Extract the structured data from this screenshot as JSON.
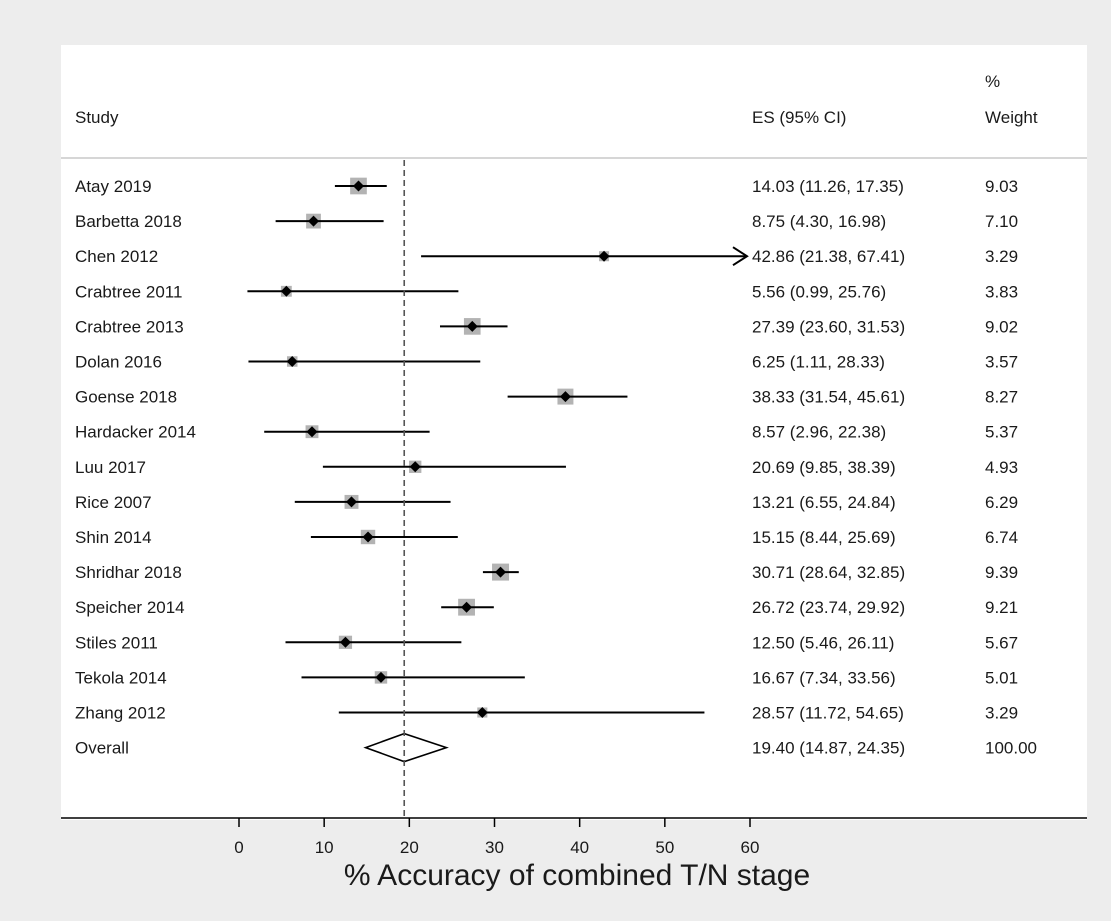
{
  "chart_data": {
    "type": "forest",
    "columns": {
      "study": "Study",
      "es": "ES (95% CI)",
      "weight_line1": "%",
      "weight_line2": "Weight"
    },
    "xlabel": "% Accuracy of combined T/N stage",
    "xlim": [
      0,
      60
    ],
    "xticks": [
      0,
      10,
      20,
      30,
      40,
      50,
      60
    ],
    "reference_line": 19.4,
    "studies": [
      {
        "name": "Atay 2019",
        "es": 14.03,
        "lo": 11.26,
        "hi": 17.35,
        "es_text": "14.03 (11.26, 17.35)",
        "weight": 9.03,
        "weight_text": "9.03"
      },
      {
        "name": "Barbetta 2018",
        "es": 8.75,
        "lo": 4.3,
        "hi": 16.98,
        "es_text": "8.75 (4.30, 16.98)",
        "weight": 7.1,
        "weight_text": "7.10"
      },
      {
        "name": "Chen 2012",
        "es": 42.86,
        "lo": 21.38,
        "hi": 67.41,
        "es_text": "42.86 (21.38, 67.41)",
        "weight": 3.29,
        "weight_text": "3.29"
      },
      {
        "name": "Crabtree 2011",
        "es": 5.56,
        "lo": 0.99,
        "hi": 25.76,
        "es_text": "5.56 (0.99, 25.76)",
        "weight": 3.83,
        "weight_text": "3.83"
      },
      {
        "name": "Crabtree 2013",
        "es": 27.39,
        "lo": 23.6,
        "hi": 31.53,
        "es_text": "27.39 (23.60, 31.53)",
        "weight": 9.02,
        "weight_text": "9.02"
      },
      {
        "name": "Dolan 2016",
        "es": 6.25,
        "lo": 1.11,
        "hi": 28.33,
        "es_text": "6.25 (1.11, 28.33)",
        "weight": 3.57,
        "weight_text": "3.57"
      },
      {
        "name": "Goense 2018",
        "es": 38.33,
        "lo": 31.54,
        "hi": 45.61,
        "es_text": "38.33 (31.54, 45.61)",
        "weight": 8.27,
        "weight_text": "8.27"
      },
      {
        "name": "Hardacker 2014",
        "es": 8.57,
        "lo": 2.96,
        "hi": 22.38,
        "es_text": "8.57 (2.96, 22.38)",
        "weight": 5.37,
        "weight_text": "5.37"
      },
      {
        "name": "Luu 2017",
        "es": 20.69,
        "lo": 9.85,
        "hi": 38.39,
        "es_text": "20.69 (9.85, 38.39)",
        "weight": 4.93,
        "weight_text": "4.93"
      },
      {
        "name": "Rice 2007",
        "es": 13.21,
        "lo": 6.55,
        "hi": 24.84,
        "es_text": "13.21 (6.55, 24.84)",
        "weight": 6.29,
        "weight_text": "6.29"
      },
      {
        "name": "Shin 2014",
        "es": 15.15,
        "lo": 8.44,
        "hi": 25.69,
        "es_text": "15.15 (8.44, 25.69)",
        "weight": 6.74,
        "weight_text": "6.74"
      },
      {
        "name": "Shridhar 2018",
        "es": 30.71,
        "lo": 28.64,
        "hi": 32.85,
        "es_text": "30.71 (28.64, 32.85)",
        "weight": 9.39,
        "weight_text": "9.39"
      },
      {
        "name": "Speicher 2014",
        "es": 26.72,
        "lo": 23.74,
        "hi": 29.92,
        "es_text": "26.72 (23.74, 29.92)",
        "weight": 9.21,
        "weight_text": "9.21"
      },
      {
        "name": "Stiles 2011",
        "es": 12.5,
        "lo": 5.46,
        "hi": 26.11,
        "es_text": "12.50 (5.46, 26.11)",
        "weight": 5.67,
        "weight_text": "5.67"
      },
      {
        "name": "Tekola 2014",
        "es": 16.67,
        "lo": 7.34,
        "hi": 33.56,
        "es_text": "16.67 (7.34, 33.56)",
        "weight": 5.01,
        "weight_text": "5.01"
      },
      {
        "name": "Zhang 2012",
        "es": 28.57,
        "lo": 11.72,
        "hi": 54.65,
        "es_text": "28.57 (11.72, 54.65)",
        "weight": 3.29,
        "weight_text": "3.29"
      }
    ],
    "overall": {
      "name": "Overall",
      "es": 19.4,
      "lo": 14.87,
      "hi": 24.35,
      "es_text": "19.40 (14.87, 24.35)",
      "weight_text": "100.00"
    },
    "colors": {
      "square": "#b3b3b3",
      "line": "#000000",
      "reference": "#555555",
      "text": "#1a1a1a",
      "separator": "#c8c8c8"
    }
  }
}
